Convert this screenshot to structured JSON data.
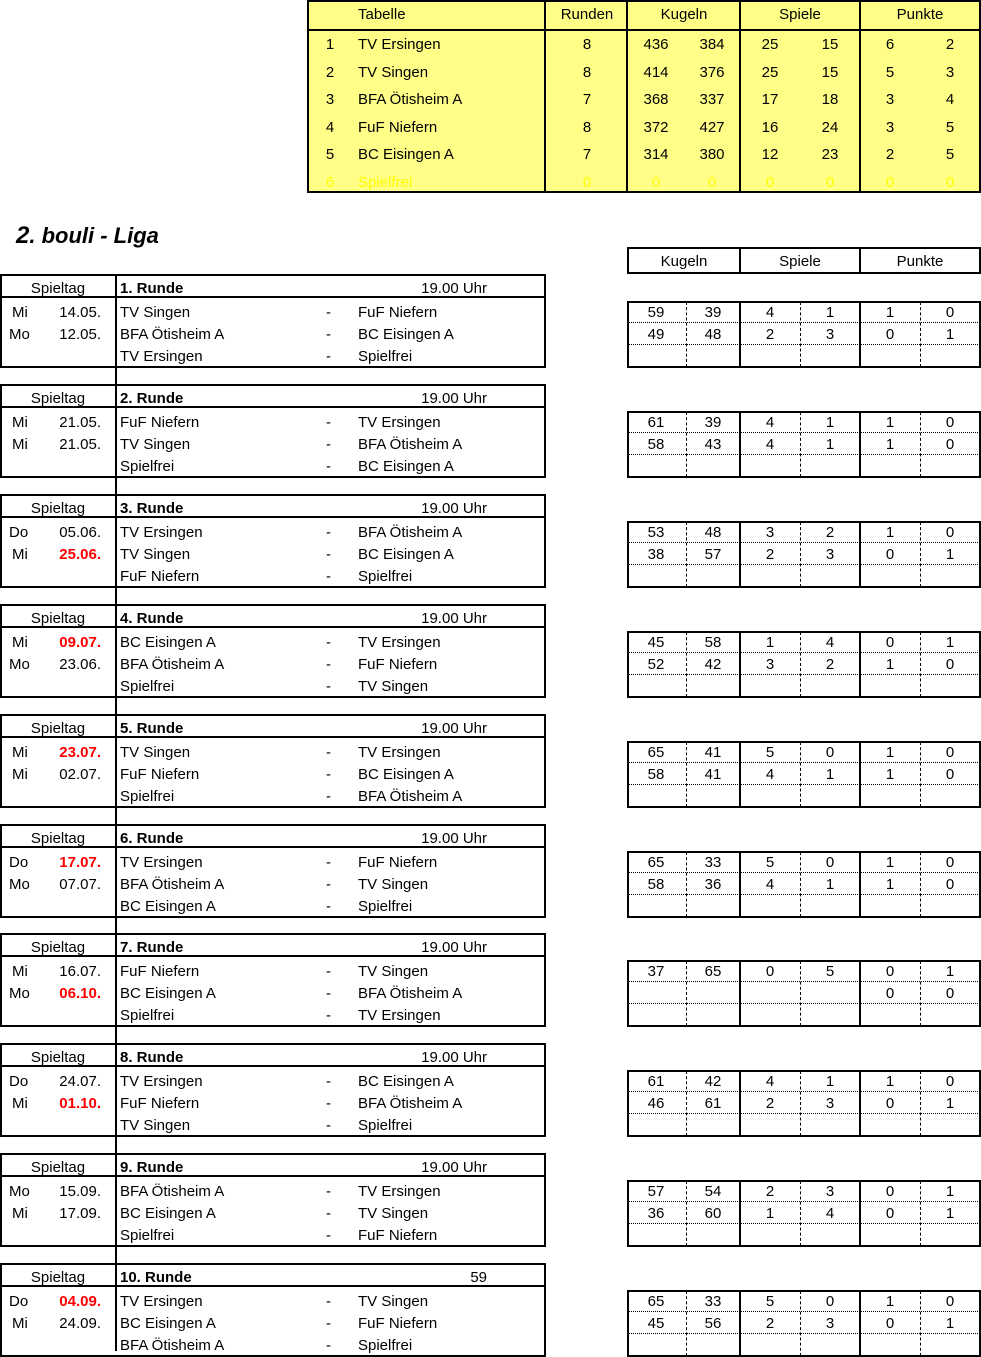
{
  "colors": {
    "table_bg": "#ffff88",
    "spielfrei_text": "#ffff00",
    "highlight_date": "#ff0000"
  },
  "standings": {
    "headers": {
      "tabelle": "Tabelle",
      "runden": "Runden",
      "kugeln": "Kugeln",
      "spiele": "Spiele",
      "punkte": "Punkte"
    },
    "rows": [
      {
        "rank": "1",
        "team": "TV Ersingen",
        "runden": "8",
        "kugeln": [
          "436",
          "384"
        ],
        "spiele": [
          "25",
          "15"
        ],
        "punkte": [
          "6",
          "2"
        ]
      },
      {
        "rank": "2",
        "team": "TV Singen",
        "runden": "8",
        "kugeln": [
          "414",
          "376"
        ],
        "spiele": [
          "25",
          "15"
        ],
        "punkte": [
          "5",
          "3"
        ]
      },
      {
        "rank": "3",
        "team": "BFA Ötisheim A",
        "runden": "7",
        "kugeln": [
          "368",
          "337"
        ],
        "spiele": [
          "17",
          "18"
        ],
        "punkte": [
          "3",
          "4"
        ]
      },
      {
        "rank": "4",
        "team": "FuF Niefern",
        "runden": "8",
        "kugeln": [
          "372",
          "427"
        ],
        "spiele": [
          "16",
          "24"
        ],
        "punkte": [
          "3",
          "5"
        ]
      },
      {
        "rank": "5",
        "team": "BC Eisingen A",
        "runden": "7",
        "kugeln": [
          "314",
          "380"
        ],
        "spiele": [
          "12",
          "23"
        ],
        "punkte": [
          "2",
          "5"
        ]
      },
      {
        "rank": "6",
        "team": "Spielfrei",
        "runden": "0",
        "kugeln": [
          "0",
          "0"
        ],
        "spiele": [
          "0",
          "0"
        ],
        "punkte": [
          "0",
          "0"
        ],
        "faded": true
      }
    ]
  },
  "league": {
    "number": "2",
    "name": ". bouli - Liga"
  },
  "score_headers": {
    "kugeln": "Kugeln",
    "spiele": "Spiele",
    "punkte": "Punkte"
  },
  "spieltag_label": "Spieltag",
  "rounds": [
    {
      "title": "1. Runde",
      "time": "19.00 Uhr",
      "matches": [
        {
          "day": "Mi",
          "date": "14.05.",
          "home": "TV Singen",
          "away": "FuF Niefern"
        },
        {
          "day": "Mo",
          "date": "12.05.",
          "home": "BFA Ötisheim A",
          "away": "BC Eisingen A"
        },
        {
          "day": "",
          "date": "",
          "home": "TV Ersingen",
          "away": "Spielfrei"
        }
      ],
      "scores": [
        [
          "59",
          "39",
          "4",
          "1",
          "1",
          "0"
        ],
        [
          "49",
          "48",
          "2",
          "3",
          "0",
          "1"
        ],
        []
      ]
    },
    {
      "title": "2. Runde",
      "time": "19.00 Uhr",
      "matches": [
        {
          "day": "Mi",
          "date": "21.05.",
          "home": "FuF Niefern",
          "away": "TV Ersingen"
        },
        {
          "day": "Mi",
          "date": "21.05.",
          "home": "TV Singen",
          "away": "BFA Ötisheim A"
        },
        {
          "day": "",
          "date": "",
          "home": "Spielfrei",
          "away": "BC Eisingen A"
        }
      ],
      "scores": [
        [
          "61",
          "39",
          "4",
          "1",
          "1",
          "0"
        ],
        [
          "58",
          "43",
          "4",
          "1",
          "1",
          "0"
        ],
        []
      ]
    },
    {
      "title": "3. Runde",
      "time": "19.00 Uhr",
      "matches": [
        {
          "day": "Do",
          "date": "05.06.",
          "home": "TV Ersingen",
          "away": "BFA Ötisheim A"
        },
        {
          "day": "Mi",
          "date": "25.06.",
          "red": true,
          "home": "TV Singen",
          "away": "BC Eisingen A"
        },
        {
          "day": "",
          "date": "",
          "home": "FuF Niefern",
          "away": "Spielfrei"
        }
      ],
      "scores": [
        [
          "53",
          "48",
          "3",
          "2",
          "1",
          "0"
        ],
        [
          "38",
          "57",
          "2",
          "3",
          "0",
          "1"
        ],
        []
      ]
    },
    {
      "title": "4. Runde",
      "time": "19.00 Uhr",
      "matches": [
        {
          "day": "Mi",
          "date": "09.07.",
          "red": true,
          "home": "BC Eisingen A",
          "away": "TV Ersingen"
        },
        {
          "day": "Mo",
          "date": "23.06.",
          "home": "BFA Ötisheim A",
          "away": "FuF Niefern"
        },
        {
          "day": "",
          "date": "",
          "home": "Spielfrei",
          "away": "TV Singen"
        }
      ],
      "scores": [
        [
          "45",
          "58",
          "1",
          "4",
          "0",
          "1"
        ],
        [
          "52",
          "42",
          "3",
          "2",
          "1",
          "0"
        ],
        []
      ]
    },
    {
      "title": "5. Runde",
      "time": "19.00 Uhr",
      "matches": [
        {
          "day": "Mi",
          "date": "23.07.",
          "red": true,
          "home": "TV Singen",
          "away": "TV Ersingen"
        },
        {
          "day": "Mi",
          "date": "02.07.",
          "home": "FuF Niefern",
          "away": "BC Eisingen A"
        },
        {
          "day": "",
          "date": "",
          "home": "Spielfrei",
          "away": "BFA Ötisheim A"
        }
      ],
      "scores": [
        [
          "65",
          "41",
          "5",
          "0",
          "1",
          "0"
        ],
        [
          "58",
          "41",
          "4",
          "1",
          "1",
          "0"
        ],
        []
      ]
    },
    {
      "title": "6. Runde",
      "time": "19.00 Uhr",
      "matches": [
        {
          "day": "Do",
          "date": "17.07.",
          "red": true,
          "home": "TV Ersingen",
          "away": "FuF Niefern"
        },
        {
          "day": "Mo",
          "date": "07.07.",
          "home": "BFA Ötisheim A",
          "away": "TV Singen"
        },
        {
          "day": "",
          "date": "",
          "home": "BC Eisingen A",
          "away": "Spielfrei"
        }
      ],
      "scores": [
        [
          "65",
          "33",
          "5",
          "0",
          "1",
          "0"
        ],
        [
          "58",
          "36",
          "4",
          "1",
          "1",
          "0"
        ],
        []
      ]
    },
    {
      "title": "7. Runde",
      "time": "19.00 Uhr",
      "matches": [
        {
          "day": "Mi",
          "date": "16.07.",
          "home": "FuF Niefern",
          "away": "TV Singen"
        },
        {
          "day": "Mo",
          "date": "06.10.",
          "red": true,
          "home": "BC Eisingen A",
          "away": "BFA Ötisheim A"
        },
        {
          "day": "",
          "date": "",
          "home": "Spielfrei",
          "away": "TV Ersingen"
        }
      ],
      "scores": [
        [
          "37",
          "65",
          "0",
          "5",
          "0",
          "1"
        ],
        [
          "",
          "",
          "",
          "",
          "0",
          "0"
        ],
        []
      ]
    },
    {
      "title": "8. Runde",
      "time": "19.00 Uhr",
      "matches": [
        {
          "day": "Do",
          "date": "24.07.",
          "home": "TV Ersingen",
          "away": "BC Eisingen A"
        },
        {
          "day": "Mi",
          "date": "01.10.",
          "red": true,
          "home": "FuF Niefern",
          "away": "BFA Ötisheim A"
        },
        {
          "day": "",
          "date": "",
          "home": "TV Singen",
          "away": "Spielfrei"
        }
      ],
      "scores": [
        [
          "61",
          "42",
          "4",
          "1",
          "1",
          "0"
        ],
        [
          "46",
          "61",
          "2",
          "3",
          "0",
          "1"
        ],
        []
      ]
    },
    {
      "title": "9. Runde",
      "time": "19.00 Uhr",
      "matches": [
        {
          "day": "Mo",
          "date": "15.09.",
          "home": "BFA Ötisheim A",
          "away": "TV Ersingen"
        },
        {
          "day": "Mi",
          "date": "17.09.",
          "home": "BC Eisingen A",
          "away": "TV Singen"
        },
        {
          "day": "",
          "date": "",
          "home": "Spielfrei",
          "away": "FuF Niefern"
        }
      ],
      "scores": [
        [
          "57",
          "54",
          "2",
          "3",
          "0",
          "1"
        ],
        [
          "36",
          "60",
          "1",
          "4",
          "0",
          "1"
        ],
        []
      ]
    },
    {
      "title": "10. Runde",
      "time": "59",
      "matches": [
        {
          "day": "Do",
          "date": "04.09.",
          "red": true,
          "home": "TV Ersingen",
          "away": "TV Singen"
        },
        {
          "day": "Mi",
          "date": "24.09.",
          "home": "BC Eisingen A",
          "away": "FuF Niefern"
        },
        {
          "day": "",
          "date": "",
          "home": "BFA Ötisheim A",
          "away": "Spielfrei"
        }
      ],
      "scores": [
        [
          "65",
          "33",
          "5",
          "0",
          "1",
          "0"
        ],
        [
          "45",
          "56",
          "2",
          "3",
          "0",
          "1"
        ],
        []
      ]
    }
  ]
}
